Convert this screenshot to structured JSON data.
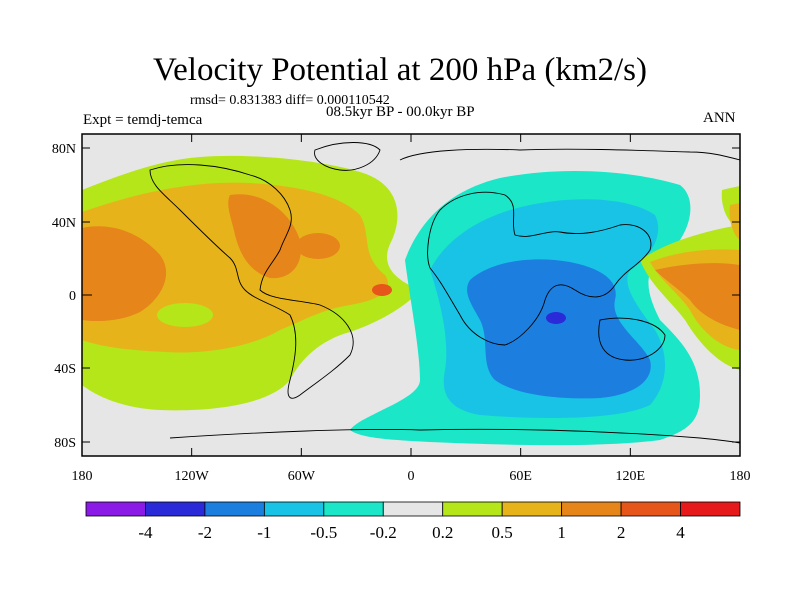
{
  "title": "Velocity Potential at 200 hPa (km2/s)",
  "stats": "rmsd= 0.831383 diff= 0.000110542",
  "experiment": "Expt = temdj-temca",
  "period": "08.5kyr BP - 00.0kyr BP",
  "season": "ANN",
  "lat_ticks": [
    "80N",
    "40N",
    "0",
    "40S",
    "80S"
  ],
  "lon_ticks": [
    "180",
    "120W",
    "60W",
    "0",
    "60E",
    "120E",
    "180"
  ],
  "colorbar": {
    "colors": [
      "#8b1ae6",
      "#2a2ad8",
      "#1c7fe0",
      "#19c3e6",
      "#1be6c8",
      "#e6e6e6",
      "#b4e61a",
      "#e6b41a",
      "#e6851a",
      "#e6551a",
      "#e61a1a"
    ],
    "labels": [
      "-4",
      "-2",
      "-1",
      "-0.5",
      "-0.2",
      "0.2",
      "0.5",
      "1",
      "2",
      "4"
    ]
  }
}
